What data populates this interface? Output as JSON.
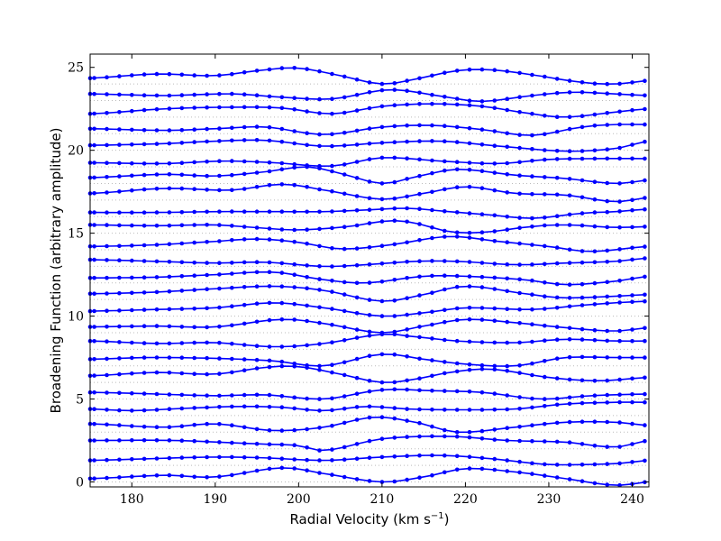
{
  "chart_data": {
    "type": "line",
    "xlabel": "Radial Velocity (km s",
    "xlabel_sup": "−1",
    "xlabel_suffix": ")",
    "ylabel": "Broadening Function (arbitrary amplitude)",
    "xlim": [
      175,
      242
    ],
    "ylim": [
      -0.3,
      25.8
    ],
    "xticks": [
      180,
      190,
      200,
      210,
      220,
      230,
      240
    ],
    "yticks": [
      0,
      5,
      10,
      15,
      20,
      25
    ],
    "grid": "horizontal dotted at each series baseline",
    "line_color": "#0000ff",
    "marker": "circle",
    "x_step": 1.5,
    "offsets": [
      0,
      1,
      2,
      3,
      4,
      5,
      6,
      7,
      8,
      9,
      10,
      11,
      12,
      13,
      14,
      15,
      16,
      17,
      18,
      19,
      20,
      21,
      22,
      23,
      24
    ],
    "series": [
      {
        "shape": [
          [
            175,
            0.2
          ],
          [
            184,
            0.4
          ],
          [
            190,
            0.3
          ],
          [
            198,
            0.85
          ],
          [
            203,
            0.5
          ],
          [
            210,
            0.0
          ],
          [
            215,
            0.3
          ],
          [
            220,
            0.8
          ],
          [
            226,
            0.6
          ],
          [
            232,
            0.2
          ],
          [
            238,
            -0.2
          ],
          [
            242,
            0.0
          ]
        ]
      },
      {
        "shape": [
          [
            175,
            1.3
          ],
          [
            182,
            1.4
          ],
          [
            190,
            1.5
          ],
          [
            196,
            1.45
          ],
          [
            203,
            1.3
          ],
          [
            210,
            1.5
          ],
          [
            217,
            1.6
          ],
          [
            223,
            1.4
          ],
          [
            230,
            1.05
          ],
          [
            238,
            1.1
          ],
          [
            242,
            1.3
          ]
        ]
      },
      {
        "shape": [
          [
            175,
            2.5
          ],
          [
            185,
            2.5
          ],
          [
            195,
            2.3
          ],
          [
            200,
            2.2
          ],
          [
            203,
            1.9
          ],
          [
            210,
            2.6
          ],
          [
            218,
            2.75
          ],
          [
            225,
            2.5
          ],
          [
            232,
            2.4
          ],
          [
            238,
            2.1
          ],
          [
            242,
            2.5
          ]
        ]
      },
      {
        "shape": [
          [
            175,
            3.5
          ],
          [
            184,
            3.3
          ],
          [
            190,
            3.5
          ],
          [
            197,
            3.1
          ],
          [
            203,
            3.3
          ],
          [
            209,
            3.9
          ],
          [
            214,
            3.6
          ],
          [
            219,
            3.0
          ],
          [
            226,
            3.3
          ],
          [
            232,
            3.6
          ],
          [
            238,
            3.6
          ],
          [
            242,
            3.4
          ]
        ]
      },
      {
        "shape": [
          [
            175,
            4.4
          ],
          [
            180,
            4.3
          ],
          [
            187,
            4.45
          ],
          [
            193,
            4.55
          ],
          [
            198,
            4.5
          ],
          [
            203,
            4.3
          ],
          [
            208,
            4.55
          ],
          [
            213,
            4.4
          ],
          [
            219,
            4.35
          ],
          [
            226,
            4.4
          ],
          [
            232,
            4.7
          ],
          [
            238,
            4.8
          ],
          [
            242,
            4.8
          ]
        ]
      },
      {
        "shape": [
          [
            175,
            5.4
          ],
          [
            183,
            5.3
          ],
          [
            190,
            5.2
          ],
          [
            196,
            5.25
          ],
          [
            203,
            5.0
          ],
          [
            210,
            5.55
          ],
          [
            216,
            5.5
          ],
          [
            222,
            5.4
          ],
          [
            229,
            5.0
          ],
          [
            235,
            5.2
          ],
          [
            242,
            5.3
          ]
        ]
      },
      {
        "shape": [
          [
            175,
            6.4
          ],
          [
            183,
            6.6
          ],
          [
            190,
            6.5
          ],
          [
            196,
            6.9
          ],
          [
            200,
            6.95
          ],
          [
            205,
            6.5
          ],
          [
            210,
            6.0
          ],
          [
            214,
            6.2
          ],
          [
            218,
            6.6
          ],
          [
            223,
            6.8
          ],
          [
            230,
            6.3
          ],
          [
            236,
            6.1
          ],
          [
            242,
            6.3
          ]
        ]
      },
      {
        "shape": [
          [
            175,
            7.4
          ],
          [
            182,
            7.5
          ],
          [
            190,
            7.45
          ],
          [
            197,
            7.3
          ],
          [
            203,
            7.0
          ],
          [
            210,
            7.7
          ],
          [
            215,
            7.4
          ],
          [
            220,
            7.1
          ],
          [
            226,
            7.0
          ],
          [
            232,
            7.5
          ],
          [
            238,
            7.5
          ],
          [
            242,
            7.5
          ]
        ]
      },
      {
        "shape": [
          [
            175,
            8.5
          ],
          [
            183,
            8.35
          ],
          [
            190,
            8.4
          ],
          [
            197,
            8.15
          ],
          [
            203,
            8.35
          ],
          [
            210,
            8.9
          ],
          [
            213,
            8.8
          ],
          [
            219,
            8.5
          ],
          [
            226,
            8.4
          ],
          [
            232,
            8.6
          ],
          [
            238,
            8.5
          ],
          [
            242,
            8.5
          ]
        ]
      },
      {
        "shape": [
          [
            175,
            9.35
          ],
          [
            183,
            9.4
          ],
          [
            190,
            9.35
          ],
          [
            198,
            9.8
          ],
          [
            203,
            9.55
          ],
          [
            210,
            9.0
          ],
          [
            215,
            9.4
          ],
          [
            220,
            9.8
          ],
          [
            226,
            9.6
          ],
          [
            232,
            9.3
          ],
          [
            238,
            9.1
          ],
          [
            242,
            9.3
          ]
        ]
      },
      {
        "shape": [
          [
            175,
            10.3
          ],
          [
            183,
            10.4
          ],
          [
            190,
            10.5
          ],
          [
            197,
            10.8
          ],
          [
            203,
            10.5
          ],
          [
            210,
            10.0
          ],
          [
            215,
            10.2
          ],
          [
            220,
            10.5
          ],
          [
            228,
            10.4
          ],
          [
            235,
            10.7
          ],
          [
            242,
            10.9
          ]
        ]
      },
      {
        "shape": [
          [
            175,
            11.35
          ],
          [
            183,
            11.45
          ],
          [
            190,
            11.65
          ],
          [
            197,
            11.8
          ],
          [
            203,
            11.55
          ],
          [
            210,
            10.9
          ],
          [
            215,
            11.3
          ],
          [
            220,
            11.8
          ],
          [
            228,
            11.3
          ],
          [
            232,
            11.1
          ],
          [
            238,
            11.2
          ],
          [
            242,
            11.3
          ]
        ]
      },
      {
        "shape": [
          [
            175,
            12.3
          ],
          [
            183,
            12.35
          ],
          [
            190,
            12.5
          ],
          [
            197,
            12.65
          ],
          [
            203,
            12.2
          ],
          [
            208,
            12.0
          ],
          [
            215,
            12.4
          ],
          [
            220,
            12.4
          ],
          [
            227,
            12.2
          ],
          [
            232,
            11.9
          ],
          [
            238,
            12.1
          ],
          [
            242,
            12.4
          ]
        ]
      },
      {
        "shape": [
          [
            175,
            13.4
          ],
          [
            183,
            13.3
          ],
          [
            190,
            13.2
          ],
          [
            196,
            13.25
          ],
          [
            203,
            13.0
          ],
          [
            208,
            13.1
          ],
          [
            214,
            13.3
          ],
          [
            219,
            13.3
          ],
          [
            226,
            13.1
          ],
          [
            232,
            13.2
          ],
          [
            238,
            13.3
          ],
          [
            242,
            13.5
          ]
        ]
      },
      {
        "shape": [
          [
            175,
            14.2
          ],
          [
            183,
            14.3
          ],
          [
            190,
            14.5
          ],
          [
            195,
            14.65
          ],
          [
            200,
            14.45
          ],
          [
            205,
            14.05
          ],
          [
            211,
            14.3
          ],
          [
            218,
            14.8
          ],
          [
            224,
            14.5
          ],
          [
            230,
            14.2
          ],
          [
            235,
            13.9
          ],
          [
            242,
            14.2
          ]
        ]
      },
      {
        "shape": [
          [
            175,
            15.5
          ],
          [
            183,
            15.45
          ],
          [
            190,
            15.5
          ],
          [
            196,
            15.3
          ],
          [
            200,
            15.2
          ],
          [
            206,
            15.4
          ],
          [
            211,
            15.75
          ],
          [
            214,
            15.6
          ],
          [
            218,
            15.1
          ],
          [
            222,
            15.05
          ],
          [
            228,
            15.4
          ],
          [
            232,
            15.5
          ],
          [
            238,
            15.35
          ],
          [
            242,
            15.4
          ]
        ]
      },
      {
        "shape": [
          [
            175,
            16.25
          ],
          [
            183,
            16.25
          ],
          [
            190,
            16.3
          ],
          [
            197,
            16.3
          ],
          [
            203,
            16.3
          ],
          [
            208,
            16.4
          ],
          [
            213,
            16.5
          ],
          [
            218,
            16.3
          ],
          [
            223,
            16.1
          ],
          [
            228,
            15.9
          ],
          [
            234,
            16.2
          ],
          [
            238,
            16.3
          ],
          [
            242,
            16.45
          ]
        ]
      },
      {
        "shape": [
          [
            175,
            17.4
          ],
          [
            184,
            17.7
          ],
          [
            192,
            17.6
          ],
          [
            198,
            17.95
          ],
          [
            203,
            17.6
          ],
          [
            210,
            17.05
          ],
          [
            215,
            17.4
          ],
          [
            220,
            17.8
          ],
          [
            226,
            17.4
          ],
          [
            232,
            17.3
          ],
          [
            238,
            16.9
          ],
          [
            242,
            17.15
          ]
        ]
      },
      {
        "shape": [
          [
            175,
            18.35
          ],
          [
            184,
            18.55
          ],
          [
            190,
            18.45
          ],
          [
            196,
            18.7
          ],
          [
            201,
            19.0
          ],
          [
            205,
            18.6
          ],
          [
            210,
            18.0
          ],
          [
            214,
            18.4
          ],
          [
            219,
            18.85
          ],
          [
            226,
            18.5
          ],
          [
            232,
            18.3
          ],
          [
            238,
            18.0
          ],
          [
            242,
            18.2
          ]
        ]
      },
      {
        "shape": [
          [
            175,
            19.25
          ],
          [
            184,
            19.2
          ],
          [
            191,
            19.35
          ],
          [
            197,
            19.25
          ],
          [
            204,
            19.05
          ],
          [
            210,
            19.55
          ],
          [
            217,
            19.35
          ],
          [
            224,
            19.2
          ],
          [
            230,
            19.45
          ],
          [
            236,
            19.5
          ],
          [
            242,
            19.5
          ]
        ]
      },
      {
        "shape": [
          [
            175,
            20.3
          ],
          [
            184,
            20.4
          ],
          [
            190,
            20.55
          ],
          [
            196,
            20.6
          ],
          [
            203,
            20.25
          ],
          [
            210,
            20.45
          ],
          [
            217,
            20.55
          ],
          [
            224,
            20.25
          ],
          [
            232,
            19.95
          ],
          [
            238,
            20.1
          ],
          [
            242,
            20.55
          ]
        ]
      },
      {
        "shape": [
          [
            175,
            21.3
          ],
          [
            184,
            21.2
          ],
          [
            190,
            21.3
          ],
          [
            196,
            21.4
          ],
          [
            203,
            20.95
          ],
          [
            210,
            21.4
          ],
          [
            216,
            21.5
          ],
          [
            222,
            21.25
          ],
          [
            228,
            20.9
          ],
          [
            234,
            21.4
          ],
          [
            238,
            21.55
          ],
          [
            242,
            21.55
          ]
        ]
      },
      {
        "shape": [
          [
            175,
            22.2
          ],
          [
            184,
            22.5
          ],
          [
            192,
            22.6
          ],
          [
            198,
            22.55
          ],
          [
            204,
            22.2
          ],
          [
            210,
            22.65
          ],
          [
            216,
            22.8
          ],
          [
            222,
            22.65
          ],
          [
            228,
            22.2
          ],
          [
            232,
            22.0
          ],
          [
            238,
            22.3
          ],
          [
            242,
            22.5
          ]
        ]
      },
      {
        "shape": [
          [
            175,
            23.4
          ],
          [
            184,
            23.3
          ],
          [
            192,
            23.4
          ],
          [
            198,
            23.2
          ],
          [
            204,
            23.1
          ],
          [
            211,
            23.65
          ],
          [
            218,
            23.2
          ],
          [
            222,
            22.95
          ],
          [
            228,
            23.3
          ],
          [
            233,
            23.5
          ],
          [
            238,
            23.4
          ],
          [
            242,
            23.3
          ]
        ]
      },
      {
        "shape": [
          [
            175,
            24.35
          ],
          [
            183,
            24.6
          ],
          [
            190,
            24.5
          ],
          [
            196,
            24.85
          ],
          [
            200,
            24.95
          ],
          [
            205,
            24.5
          ],
          [
            210,
            24.0
          ],
          [
            214,
            24.3
          ],
          [
            219,
            24.8
          ],
          [
            223,
            24.85
          ],
          [
            228,
            24.55
          ],
          [
            234,
            24.1
          ],
          [
            238,
            24.0
          ],
          [
            242,
            24.2
          ]
        ]
      }
    ]
  }
}
